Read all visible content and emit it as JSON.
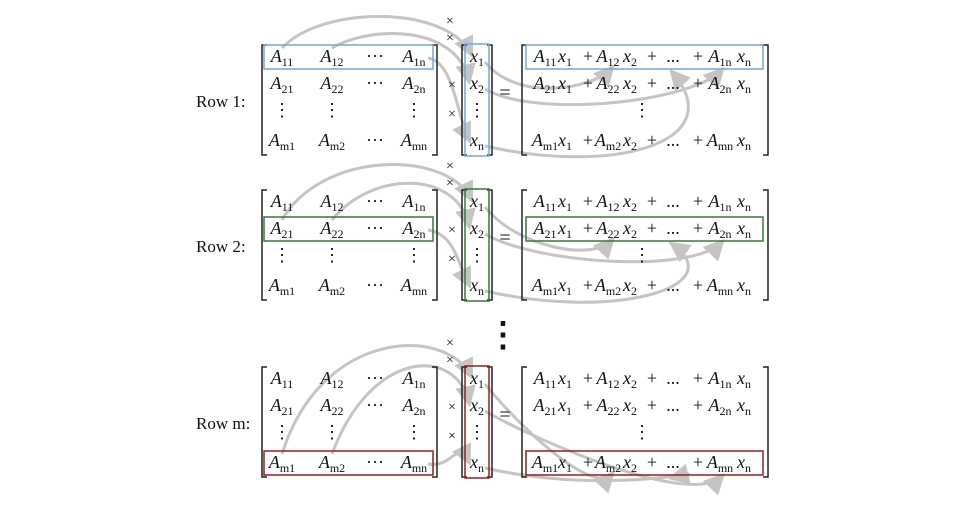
{
  "blocks": [
    {
      "label": "Row 1:",
      "highlight_color": "#6fa8dc",
      "highlight_row": 0
    },
    {
      "label": "Row 2:",
      "highlight_color": "#2e7d32",
      "highlight_row": 1
    },
    {
      "label": "Row m:",
      "highlight_color": "#9b1c1c",
      "highlight_row": 3
    }
  ],
  "matrix_A": [
    [
      [
        "A",
        "11"
      ],
      [
        "A",
        "12"
      ],
      [
        "···",
        ""
      ],
      [
        "A",
        "1n"
      ]
    ],
    [
      [
        "A",
        "21"
      ],
      [
        "A",
        "22"
      ],
      [
        "···",
        ""
      ],
      [
        "A",
        "2n"
      ]
    ],
    [
      [
        "⋮",
        ""
      ],
      [
        "⋮",
        ""
      ],
      [
        "",
        ""
      ],
      [
        "⋮",
        ""
      ]
    ],
    [
      [
        "A",
        "m1"
      ],
      [
        "A",
        "m2"
      ],
      [
        "···",
        ""
      ],
      [
        "A",
        "mn"
      ]
    ]
  ],
  "vector_x": [
    [
      "x",
      "1"
    ],
    [
      "x",
      "2"
    ],
    [
      "⋮",
      ""
    ],
    [
      "x",
      "n"
    ]
  ],
  "result_rows": [
    [
      [
        "A",
        "11"
      ],
      [
        "x",
        "1"
      ],
      [
        "+",
        ""
      ],
      [
        "A",
        "12"
      ],
      [
        "x",
        "2"
      ],
      [
        "+",
        ""
      ],
      [
        "...",
        ""
      ],
      [
        "+",
        ""
      ],
      [
        "A",
        "1n"
      ],
      [
        "x",
        "n"
      ]
    ],
    [
      [
        "A",
        "21"
      ],
      [
        "x",
        "1"
      ],
      [
        "+",
        ""
      ],
      [
        "A",
        "22"
      ],
      [
        "x",
        "2"
      ],
      [
        "+",
        ""
      ],
      [
        "...",
        ""
      ],
      [
        "+",
        ""
      ],
      [
        "A",
        "2n"
      ],
      [
        "x",
        "n"
      ]
    ],
    [
      [
        "⋮",
        ""
      ]
    ],
    [
      [
        "A",
        "m1"
      ],
      [
        "x",
        "1"
      ],
      [
        "+",
        ""
      ],
      [
        "A",
        "m2"
      ],
      [
        "x",
        "2"
      ],
      [
        "+",
        ""
      ],
      [
        "...",
        ""
      ],
      [
        "+",
        ""
      ],
      [
        "A",
        "mn"
      ],
      [
        "x",
        "n"
      ]
    ]
  ],
  "equals_sign": "=",
  "times_sign": "×",
  "vertical_ellipsis": "⋮",
  "colors": {
    "arrow": "#c4c4c4",
    "text": "#111111",
    "bracket": "#222222"
  }
}
